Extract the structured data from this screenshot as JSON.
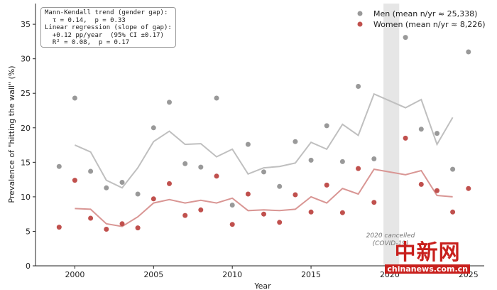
{
  "chart_data": {
    "type": "scatter",
    "title": "",
    "xlabel": "Year",
    "ylabel": "Prevalence of \"hitting the wall\" (%)",
    "xlim": [
      1997.5,
      2026
    ],
    "ylim": [
      0,
      38
    ],
    "xticks": [
      2000,
      2005,
      2010,
      2015,
      2020,
      2025
    ],
    "yticks": [
      0,
      5,
      10,
      15,
      20,
      25,
      30,
      35
    ],
    "grid": false,
    "legend": "top-right",
    "series": [
      {
        "name": "Men (mean n/yr ≈ 25,338)",
        "color": "#999999",
        "points": [
          [
            1999,
            14.4
          ],
          [
            2000,
            24.3
          ],
          [
            2001,
            13.7
          ],
          [
            2002,
            11.3
          ],
          [
            2003,
            12.1
          ],
          [
            2004,
            10.4
          ],
          [
            2005,
            20.0
          ],
          [
            2006,
            23.7
          ],
          [
            2007,
            14.8
          ],
          [
            2008,
            14.3
          ],
          [
            2009,
            24.3
          ],
          [
            2010,
            8.8
          ],
          [
            2011,
            17.6
          ],
          [
            2012,
            13.6
          ],
          [
            2013,
            11.5
          ],
          [
            2014,
            18.0
          ],
          [
            2015,
            15.3
          ],
          [
            2016,
            20.3
          ],
          [
            2017,
            15.1
          ],
          [
            2018,
            26.0
          ],
          [
            2019,
            15.5
          ],
          [
            2021,
            33.1
          ],
          [
            2022,
            19.8
          ],
          [
            2023,
            19.2
          ],
          [
            2024,
            14.0
          ],
          [
            2025,
            31.0
          ]
        ],
        "trend_color": "#bfbfbf",
        "trend": [
          [
            2000,
            17.5
          ],
          [
            2001,
            16.5
          ],
          [
            2002,
            12.4
          ],
          [
            2003,
            11.3
          ],
          [
            2004,
            14.2
          ],
          [
            2005,
            18.0
          ],
          [
            2006,
            19.5
          ],
          [
            2007,
            17.6
          ],
          [
            2008,
            17.7
          ],
          [
            2009,
            15.8
          ],
          [
            2010,
            16.9
          ],
          [
            2011,
            13.3
          ],
          [
            2012,
            14.2
          ],
          [
            2013,
            14.4
          ],
          [
            2014,
            14.9
          ],
          [
            2015,
            17.9
          ],
          [
            2016,
            16.9
          ],
          [
            2017,
            20.5
          ],
          [
            2018,
            18.9
          ],
          [
            2019,
            24.9
          ],
          [
            2021,
            22.9
          ],
          [
            2022,
            24.1
          ],
          [
            2023,
            17.6
          ],
          [
            2024,
            21.5
          ]
        ]
      },
      {
        "name": "Women (mean n/yr ≈ 8,226)",
        "color": "#c0504d",
        "points": [
          [
            1999,
            5.6
          ],
          [
            2000,
            12.4
          ],
          [
            2001,
            6.9
          ],
          [
            2002,
            5.3
          ],
          [
            2003,
            6.1
          ],
          [
            2004,
            5.5
          ],
          [
            2005,
            9.7
          ],
          [
            2006,
            11.9
          ],
          [
            2007,
            7.3
          ],
          [
            2008,
            8.1
          ],
          [
            2009,
            13.0
          ],
          [
            2010,
            6.0
          ],
          [
            2011,
            10.4
          ],
          [
            2012,
            7.5
          ],
          [
            2013,
            6.3
          ],
          [
            2014,
            10.3
          ],
          [
            2015,
            7.8
          ],
          [
            2016,
            11.7
          ],
          [
            2017,
            7.7
          ],
          [
            2018,
            14.1
          ],
          [
            2019,
            9.2
          ],
          [
            2021,
            18.5
          ],
          [
            2022,
            11.8
          ],
          [
            2023,
            10.9
          ],
          [
            2024,
            7.8
          ],
          [
            2025,
            11.2
          ]
        ],
        "trend_color": "#d99694",
        "trend": [
          [
            2000,
            8.3
          ],
          [
            2001,
            8.2
          ],
          [
            2002,
            6.1
          ],
          [
            2003,
            5.7
          ],
          [
            2004,
            7.1
          ],
          [
            2005,
            9.1
          ],
          [
            2006,
            9.6
          ],
          [
            2007,
            9.1
          ],
          [
            2008,
            9.5
          ],
          [
            2009,
            9.1
          ],
          [
            2010,
            9.8
          ],
          [
            2011,
            8.0
          ],
          [
            2012,
            8.1
          ],
          [
            2013,
            8.0
          ],
          [
            2014,
            8.2
          ],
          [
            2015,
            10.0
          ],
          [
            2016,
            9.1
          ],
          [
            2017,
            11.2
          ],
          [
            2018,
            10.4
          ],
          [
            2019,
            14.0
          ],
          [
            2021,
            13.2
          ],
          [
            2022,
            13.8
          ],
          [
            2023,
            10.2
          ],
          [
            2024,
            10.0
          ]
        ]
      }
    ],
    "shaded_region": {
      "x": [
        2019.6,
        2020.6
      ],
      "color": "#e6e6e6"
    },
    "annotations": [
      "2020 cancelled",
      "(COVID-19)"
    ],
    "stats_box": [
      "Mann-Kendall trend (gender gap):",
      "  τ = 0.14,  p = 0.33",
      "Linear regression (slope of gap):",
      "  +0.12 pp/year  (95% CI ±0.17)",
      "  R² = 0.08,  p = 0.17"
    ]
  },
  "watermark": {
    "cn": "中新网",
    "en": "chinanews.com.cn"
  }
}
